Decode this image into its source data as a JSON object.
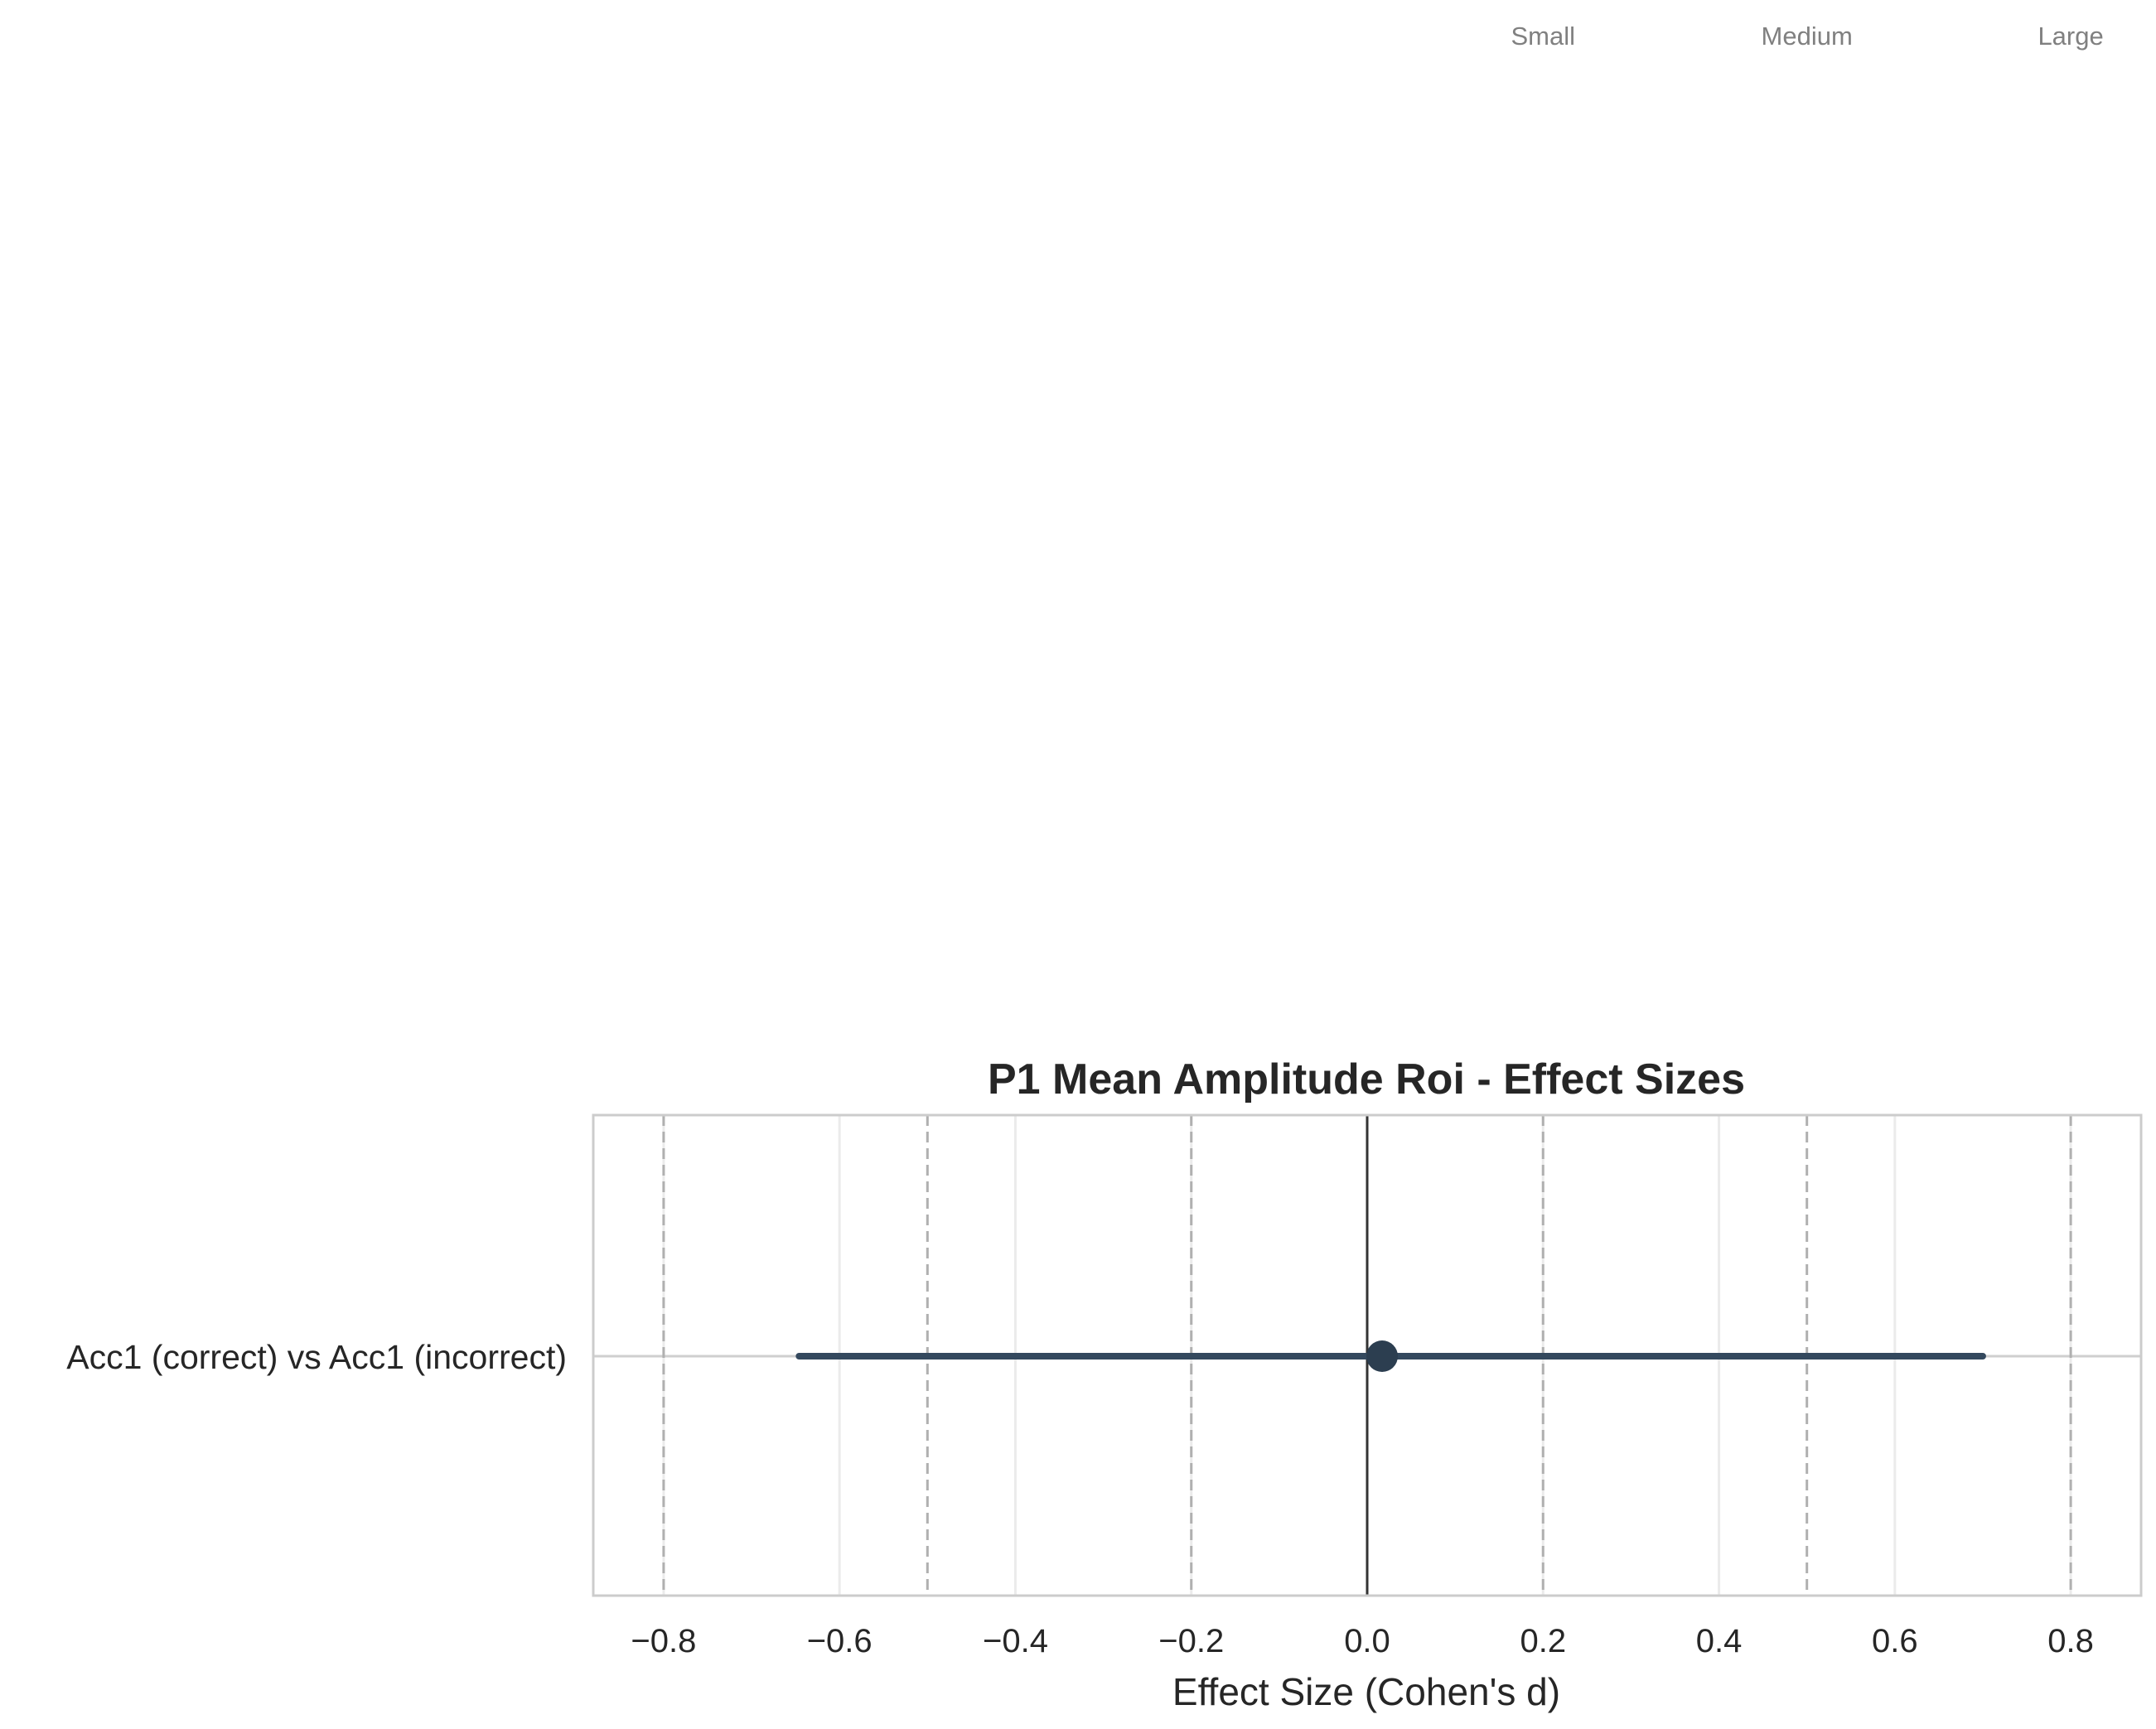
{
  "chart_data": {
    "type": "forest",
    "title": "P1 Mean Amplitude Roi - Effect Sizes",
    "xlabel": "Effect Size (Cohen's d)",
    "ylabel": "",
    "xlim": [
      -0.88,
      0.88
    ],
    "x_ticks": [
      -0.8,
      -0.6,
      -0.4,
      -0.2,
      0.0,
      0.2,
      0.4,
      0.6,
      0.8
    ],
    "x_tick_labels": [
      "−0.8",
      "−0.6",
      "−0.4",
      "−0.2",
      "0.0",
      "0.2",
      "0.4",
      "0.6",
      "0.8"
    ],
    "grid": true,
    "categories": [
      "Acc1 (correct) vs Acc1 (incorrect)"
    ],
    "series": [
      {
        "estimate": [
          0.017
        ],
        "ci_low": [
          -0.646
        ],
        "ci_high": [
          0.7
        ]
      }
    ],
    "reference_lines": [
      {
        "value": 0.0,
        "style": "solid"
      },
      {
        "value": -0.8,
        "style": "dashed"
      },
      {
        "value": -0.5,
        "style": "dashed"
      },
      {
        "value": -0.2,
        "style": "dashed"
      },
      {
        "value": 0.2,
        "style": "dashed",
        "label": "Small"
      },
      {
        "value": 0.5,
        "style": "dashed",
        "label": "Medium"
      },
      {
        "value": 0.8,
        "style": "dashed",
        "label": "Large"
      }
    ],
    "colors": {
      "marker": "#2c3e50",
      "ci_line": "#34495e",
      "zero_line": "#333333",
      "threshold_lines": "#b0b0b0",
      "grid": "#ebebeb",
      "frame": "#cccccc",
      "threshold_labels": "#808080",
      "text": "#262626"
    }
  }
}
